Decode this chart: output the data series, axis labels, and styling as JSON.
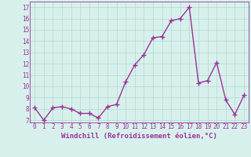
{
  "x": [
    0,
    1,
    2,
    3,
    4,
    5,
    6,
    7,
    8,
    9,
    10,
    11,
    12,
    13,
    14,
    15,
    16,
    17,
    18,
    19,
    20,
    21,
    22,
    23
  ],
  "y": [
    8.1,
    7.0,
    8.1,
    8.2,
    8.0,
    7.6,
    7.6,
    7.2,
    8.2,
    8.4,
    10.4,
    11.9,
    12.8,
    14.3,
    14.4,
    15.8,
    16.0,
    17.0,
    10.3,
    10.5,
    12.1,
    8.8,
    7.5,
    9.2
  ],
  "line_color": "#993399",
  "marker": "+",
  "marker_size": 4,
  "linewidth": 1.0,
  "xlabel": "Windchill (Refroidissement éolien,°C)",
  "ylim": [
    6.8,
    17.5
  ],
  "xlim": [
    -0.5,
    23.5
  ],
  "yticks": [
    7,
    8,
    9,
    10,
    11,
    12,
    13,
    14,
    15,
    16,
    17
  ],
  "xticks": [
    0,
    1,
    2,
    3,
    4,
    5,
    6,
    7,
    8,
    9,
    10,
    11,
    12,
    13,
    14,
    15,
    16,
    17,
    18,
    19,
    20,
    21,
    22,
    23
  ],
  "grid_color": "#b0d8d0",
  "bg_color": "#d8f0ec",
  "tick_fontsize": 5.5,
  "xlabel_fontsize": 6.5
}
